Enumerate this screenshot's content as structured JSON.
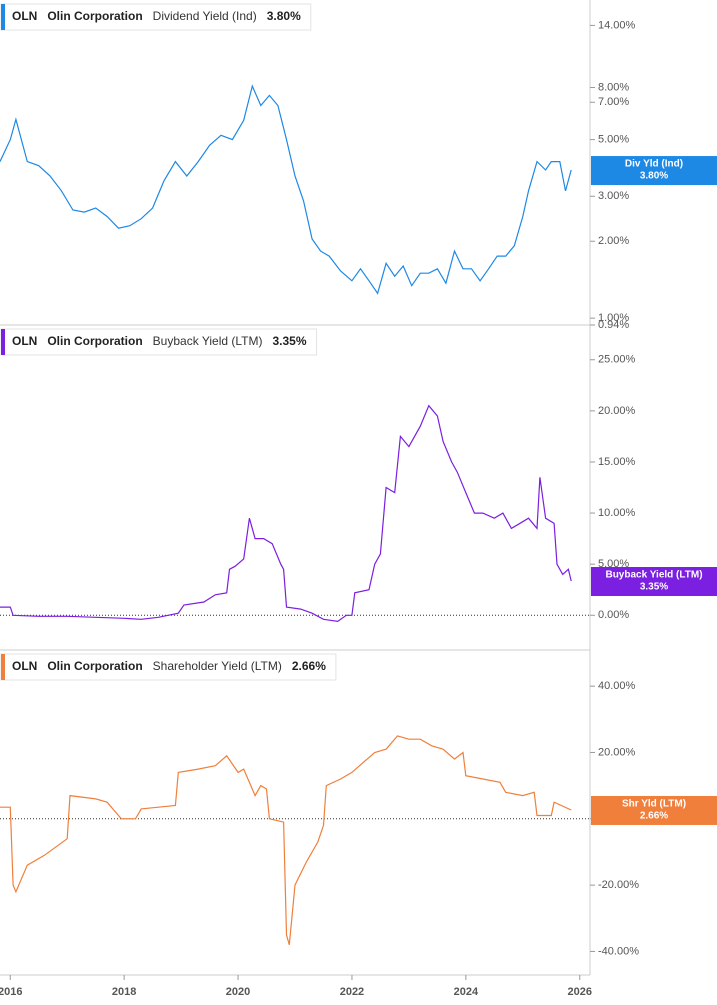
{
  "chart_data": [
    {
      "type": "line",
      "ticker": "OLN",
      "company": "Olin Corporation",
      "log_scale": true,
      "zero_line": false,
      "xlim": [
        2015.82,
        2026.18
      ],
      "ylim": [
        0.94,
        17.6
      ],
      "yticks": [
        {
          "value": 0.94,
          "label": "0.94%"
        },
        {
          "value": 1,
          "label": "1.00%"
        },
        {
          "value": 2,
          "label": "2.00%"
        },
        {
          "value": 3,
          "label": "3.00%"
        },
        {
          "value": 5,
          "label": "5.00%"
        },
        {
          "value": 7,
          "label": "7.00%"
        },
        {
          "value": 8,
          "label": "8.00%"
        },
        {
          "value": 14,
          "label": "14.00%"
        }
      ],
      "series": [
        {
          "name": "Dividend Yield (Ind)",
          "short_name": "Div Yld (Ind)",
          "color": "#1e88e5",
          "end_label": "3.80%",
          "x": [
            2015.82,
            2016.0,
            2016.1,
            2016.3,
            2016.5,
            2016.7,
            2016.9,
            2017.1,
            2017.3,
            2017.5,
            2017.7,
            2017.9,
            2018.1,
            2018.3,
            2018.5,
            2018.7,
            2018.9,
            2019.1,
            2019.3,
            2019.5,
            2019.7,
            2019.9,
            2020.1,
            2020.25,
            2020.4,
            2020.55,
            2020.7,
            2020.85,
            2021.0,
            2021.15,
            2021.3,
            2021.45,
            2021.6,
            2021.8,
            2022.0,
            2022.15,
            2022.3,
            2022.45,
            2022.6,
            2022.75,
            2022.9,
            2023.05,
            2023.2,
            2023.35,
            2023.5,
            2023.65,
            2023.8,
            2023.95,
            2024.1,
            2024.25,
            2024.4,
            2024.55,
            2024.7,
            2024.85,
            2025.0,
            2025.1,
            2025.25,
            2025.4,
            2025.5,
            2025.65,
            2025.75,
            2025.85
          ],
          "values": [
            4.1,
            5.0,
            6.0,
            4.1,
            3.95,
            3.6,
            3.15,
            2.65,
            2.6,
            2.7,
            2.5,
            2.25,
            2.3,
            2.45,
            2.7,
            3.45,
            4.1,
            3.6,
            4.1,
            4.75,
            5.2,
            5.0,
            5.95,
            8.1,
            6.8,
            7.45,
            6.8,
            5.0,
            3.6,
            2.88,
            2.04,
            1.83,
            1.75,
            1.53,
            1.4,
            1.56,
            1.4,
            1.25,
            1.64,
            1.46,
            1.6,
            1.34,
            1.5,
            1.5,
            1.56,
            1.37,
            1.83,
            1.56,
            1.56,
            1.4,
            1.56,
            1.75,
            1.75,
            1.92,
            2.5,
            3.15,
            4.1,
            3.8,
            4.1,
            4.1,
            3.15,
            3.8
          ]
        }
      ]
    },
    {
      "type": "line",
      "ticker": "OLN",
      "company": "Olin Corporation",
      "log_scale": false,
      "zero_line": true,
      "xlim": [
        2015.82,
        2026.18
      ],
      "ylim": [
        -3.4,
        28.4
      ],
      "yticks": [
        {
          "value": 0,
          "label": "0.00%"
        },
        {
          "value": 5,
          "label": "5.00%"
        },
        {
          "value": 10,
          "label": "10.00%"
        },
        {
          "value": 15,
          "label": "15.00%"
        },
        {
          "value": 20,
          "label": "20.00%"
        },
        {
          "value": 25,
          "label": "25.00%"
        }
      ],
      "series": [
        {
          "name": "Buyback Yield (LTM)",
          "short_name": "Buyback Yield (LTM)",
          "color": "#7b1fe0",
          "end_label": "3.35%",
          "x": [
            2015.82,
            2016.0,
            2016.05,
            2016.5,
            2017.0,
            2017.5,
            2018.0,
            2018.3,
            2018.6,
            2018.95,
            2019.05,
            2019.4,
            2019.6,
            2019.8,
            2019.85,
            2019.95,
            2020.1,
            2020.2,
            2020.3,
            2020.45,
            2020.6,
            2020.75,
            2020.8,
            2020.85,
            2021.1,
            2021.3,
            2021.5,
            2021.75,
            2021.9,
            2022.0,
            2022.05,
            2022.3,
            2022.4,
            2022.5,
            2022.6,
            2022.75,
            2022.85,
            2023.0,
            2023.2,
            2023.35,
            2023.5,
            2023.6,
            2023.75,
            2023.85,
            2024.0,
            2024.15,
            2024.3,
            2024.5,
            2024.65,
            2024.8,
            2024.95,
            2025.1,
            2025.25,
            2025.3,
            2025.4,
            2025.55,
            2025.6,
            2025.7,
            2025.8,
            2025.85
          ],
          "values": [
            0.8,
            0.8,
            0,
            -0.1,
            -0.1,
            -0.2,
            -0.3,
            -0.4,
            -0.2,
            0.2,
            1.0,
            1.3,
            2.0,
            2.2,
            4.5,
            4.8,
            5.5,
            9.5,
            7.5,
            7.5,
            7.0,
            5.0,
            4.5,
            0.8,
            0.6,
            0.2,
            -0.4,
            -0.6,
            0,
            0,
            2.2,
            2.5,
            5.0,
            6.0,
            12.5,
            12.0,
            17.5,
            16.5,
            18.5,
            20.5,
            19.5,
            17.0,
            15.0,
            14.0,
            12.0,
            10.0,
            10.0,
            9.5,
            10.0,
            8.5,
            9.0,
            9.5,
            8.5,
            13.5,
            9.5,
            9.0,
            5.0,
            4.0,
            4.5,
            3.35
          ]
        }
      ]
    },
    {
      "type": "line",
      "ticker": "OLN",
      "company": "Olin Corporation",
      "log_scale": false,
      "zero_line": true,
      "xlim": [
        2015.82,
        2026.18
      ],
      "ylim": [
        -47.1,
        50.9
      ],
      "yticks": [
        {
          "value": -40,
          "label": "-40.00%"
        },
        {
          "value": -20,
          "label": "-20.00%"
        },
        {
          "value": 0,
          "label": "0.00%"
        },
        {
          "value": 20,
          "label": "20.00%"
        },
        {
          "value": 40,
          "label": "40.00%"
        }
      ],
      "xticks": [
        2016,
        2018,
        2020,
        2022,
        2024,
        2026
      ],
      "series": [
        {
          "name": "Shareholder Yield (LTM)",
          "short_name": "Shr Yld (LTM)",
          "color": "#f07f3c",
          "end_label": "2.66%",
          "x": [
            2015.82,
            2016.0,
            2016.05,
            2016.1,
            2016.3,
            2016.6,
            2017.0,
            2017.05,
            2017.5,
            2017.7,
            2017.95,
            2018.2,
            2018.3,
            2018.6,
            2018.9,
            2018.95,
            2019.3,
            2019.6,
            2019.8,
            2020.0,
            2020.1,
            2020.3,
            2020.4,
            2020.5,
            2020.55,
            2020.8,
            2020.85,
            2020.9,
            2021.0,
            2021.2,
            2021.4,
            2021.5,
            2021.55,
            2021.8,
            2022.0,
            2022.2,
            2022.4,
            2022.6,
            2022.8,
            2023.0,
            2023.2,
            2023.4,
            2023.6,
            2023.8,
            2023.95,
            2024.0,
            2024.3,
            2024.6,
            2024.7,
            2025.0,
            2025.2,
            2025.25,
            2025.5,
            2025.55,
            2025.85
          ],
          "values": [
            3.5,
            3.5,
            -20,
            -22,
            -14,
            -11,
            -6,
            7,
            6,
            5,
            0,
            0,
            3,
            3.5,
            4,
            14,
            15,
            16,
            19,
            14,
            15,
            7,
            10,
            9,
            0,
            -1,
            -35,
            -38,
            -20,
            -13,
            -7,
            -2,
            10,
            12,
            14,
            17,
            20,
            21,
            25,
            24,
            24,
            22,
            21,
            18,
            20,
            13,
            12,
            11,
            8,
            7,
            8,
            1,
            1,
            5,
            2.66
          ]
        }
      ]
    }
  ]
}
